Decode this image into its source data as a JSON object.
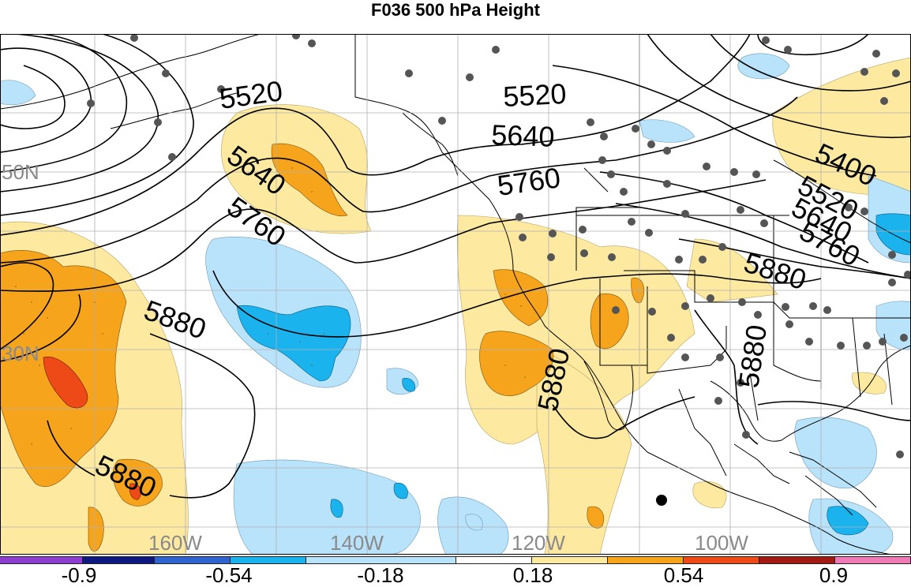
{
  "title": "F036 500 hPa Height",
  "map": {
    "longitude_labels": [
      "160W",
      "140W",
      "120W",
      "100W"
    ],
    "latitude_labels": [
      "50N",
      "30N"
    ],
    "contour_labels": [
      "5520",
      "5640",
      "5760",
      "5880",
      "5520",
      "5640",
      "5760",
      "5880",
      "5880",
      "5880",
      "5400",
      "5520",
      "5640",
      "5760",
      "5880"
    ],
    "colors": {
      "light_blue": "#b9e3fb",
      "blue": "#1ab3ee",
      "light_yellow": "#fdeaa0",
      "orange": "#f5a41c",
      "red_orange": "#ee4a18",
      "contour": "#000000",
      "grid": "#b0b0b0",
      "station_dot": "#555555"
    }
  },
  "colorbar": {
    "colors": [
      "#8e3dd1",
      "#0e1880",
      "#2f63cf",
      "#1ab3ee",
      "#b9e3fb",
      "#ffffff",
      "#fdeaa0",
      "#f5a41c",
      "#ee4a18",
      "#a31a14",
      "#ee7bb6"
    ],
    "labels": [
      "-0.9",
      "-0.54",
      "-0.18",
      "0.18",
      "0.54",
      "0.9"
    ]
  }
}
